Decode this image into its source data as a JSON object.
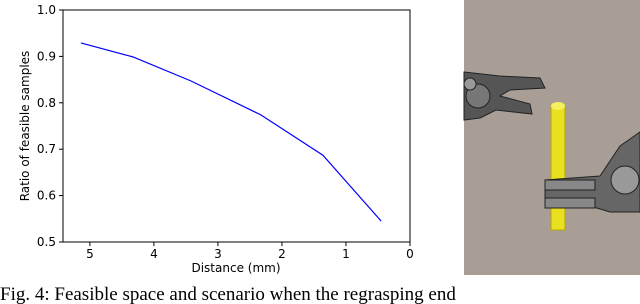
{
  "chart_data": {
    "type": "line",
    "xlabel": "Distance (mm)",
    "ylabel": "Ratio of feasible samples",
    "x": [
      5.14,
      4.33,
      3.42,
      2.33,
      1.36,
      0.45
    ],
    "series": [
      {
        "color": "#0000ff",
        "values": [
          0.929,
          0.899,
          0.847,
          0.774,
          0.687,
          0.545
        ]
      }
    ],
    "xlim": [
      5.42,
      0
    ],
    "xticks": [
      5,
      4,
      3,
      2,
      1,
      0
    ],
    "ylim": [
      0.5,
      1.0
    ],
    "yticks": [
      0.5,
      0.6,
      0.7,
      0.8,
      0.9,
      {
        "value": 1.0,
        "label": "1.0"
      }
    ]
  },
  "caption": "Fig. 4: Feasible space and scenario when the regrasping end"
}
